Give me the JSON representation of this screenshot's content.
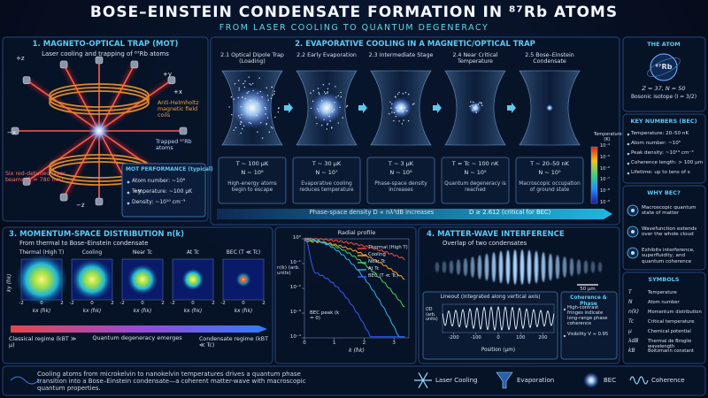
{
  "header": {
    "title": "BOSE–EINSTEIN CONDENSATE FORMATION IN ⁸⁷Rb ATOMS",
    "subtitle": "FROM LASER COOLING TO QUANTUM DEGENERACY"
  },
  "mot": {
    "title": "1. MAGNETO-OPTICAL TRAP (MOT)",
    "subtitle": "Laser cooling and trapping of ⁸⁷Rb atoms",
    "axes": [
      "+z",
      "−z",
      "+x",
      "−x",
      "+y",
      "−y"
    ],
    "coils_label": "Anti-Helmholtz magnetic field coils",
    "atoms_label": "Trapped ⁸⁷Rb atoms",
    "beams_label": "Six red-detuned laser beams (λ = 780 nm)",
    "performance": {
      "title": "MOT PERFORMANCE (typical)",
      "items": [
        "Atom number: ~10⁸",
        "Temperature: ~100 μK",
        "Density: ~10¹⁰ cm⁻³"
      ]
    }
  },
  "evap": {
    "title": "2. EVAPORATIVE COOLING IN A MAGNETIC/OPTICAL TRAP",
    "stages": [
      {
        "name": "2.1  Optical Dipole Trap (Loading)",
        "T": "T ~ 100 μK",
        "N": "N ~ 10⁸",
        "note": "High-energy atoms begin to escape"
      },
      {
        "name": "2.2  Early Evaporation",
        "T": "T ~ 30 μK",
        "N": "N ~ 10⁷",
        "note": "Evaporative cooling reduces temperature"
      },
      {
        "name": "2.3  Intermediate Stage",
        "T": "T ~ 3 μK",
        "N": "N ~ 10⁶",
        "note": "Phase-space density increases"
      },
      {
        "name": "2.4  Near Critical Temperature",
        "T": "T ≈ Tc ~ 100 nK",
        "N": "N ~ 10⁵",
        "note": "Quantum degeneracy is reached"
      },
      {
        "name": "2.5  Bose–Einstein Condensate",
        "T": "T ~ 20–50 nK",
        "N": "N ~ 10⁵",
        "note": "Macroscopic occupation of ground state"
      }
    ],
    "colorbar": {
      "title": "Temperature (K)",
      "ticks": [
        "10⁻⁴",
        "10⁻⁵",
        "10⁻⁶",
        "10⁻⁷",
        "10⁻⁸",
        "10⁻⁹"
      ]
    },
    "psd": "Phase-space density  D ∝ nλ³dB  increases",
    "critical": "D ≥ 2.612 (critical for BEC)"
  },
  "atom": {
    "title": "THE ATOM",
    "symbol": "⁸⁷Rb",
    "numbers": "Z = 37, N = 50",
    "isotope": "Bosonic isotope (I = 3/2)"
  },
  "key_numbers": {
    "title": "KEY NUMBERS (BEC)",
    "items": [
      "Temperature: 20–50 nK",
      "Atom number: ~10⁵",
      "Peak density: ~10¹⁴ cm⁻³",
      "Coherence length: > 100 μm",
      "Lifetime: up to tens of s"
    ]
  },
  "why": {
    "title": "WHY BEC?",
    "items": [
      "Macroscopic quantum state of matter",
      "Wavefunction extends over the whole cloud",
      "Exhibits interference, superfluidity, and quantum coherence"
    ]
  },
  "symbols": {
    "title": "SYMBOLS",
    "items": [
      [
        "T",
        "Temperature"
      ],
      [
        "N",
        "Atom number"
      ],
      [
        "n(k)",
        "Momentum distribution"
      ],
      [
        "Tc",
        "Critical temperature"
      ],
      [
        "μ",
        "Chemical potential"
      ],
      [
        "λdB",
        "Thermal de Broglie wavelength"
      ],
      [
        "kB",
        "Boltzmann constant"
      ]
    ]
  },
  "momentum": {
    "title": "3. MOMENTUM-SPACE DISTRIBUTION n(k)",
    "subtitle": "From thermal to Bose–Einstein condensate",
    "panels": [
      "Thermal (High T)",
      "Cooling",
      "Near Tc",
      "At Tc",
      "BEC (T ≪ Tc)"
    ],
    "ky_label": "ky (ħk)",
    "kx_label": "kx (ħk)",
    "ticks": [
      -2,
      0,
      2
    ],
    "classical": "Classical regime (kBT ≫ μ)",
    "degeneracy": "Quantum degeneracy emerges",
    "condensate": "Condensate regime (kBT ≪ Tc)"
  },
  "radial": {
    "title": "Radial profile",
    "ylabel": "n(k) (arb. units)",
    "xlabel": "k (ħk)",
    "xlim": [
      0,
      3.5
    ],
    "xticks": [
      0,
      1,
      2,
      3
    ],
    "ylim": [
      0.0001,
      1
    ],
    "yticks": [
      {
        "value": 1,
        "label": "10⁰"
      },
      {
        "value": 0.1,
        "label": "10⁻¹"
      },
      {
        "value": 0.01,
        "label": "10⁻²"
      },
      {
        "value": 0.001,
        "label": "10⁻³"
      },
      {
        "value": 0.0001,
        "label": "10⁻⁴"
      }
    ],
    "legend": [
      "Thermal (High T)",
      "Cooling",
      "Near Tc",
      "At Tc",
      "BEC (T ≪ Tc)"
    ],
    "peak_label": "BEC peak (k = 0)"
  },
  "interference": {
    "title": "4. MATTER-WAVE INTERFERENCE",
    "subtitle": "Overlap of two condensates",
    "scale": "50 μm",
    "lineout_title": "Lineout (integrated along vertical axis)",
    "ylabel": "OD (arb. units)",
    "xlim": [
      -250,
      250
    ],
    "xticks": [
      -200,
      -100,
      0,
      100,
      200
    ],
    "xlabel": "Position (μm)",
    "coherence_title": "Coherence & Phase",
    "coherence_items": [
      "High-contrast fringes indicate long-range phase coherence",
      "Visibility V ≈ 0.95"
    ]
  },
  "footer": {
    "text": "Cooling atoms from microkelvin to nanokelvin temperatures drives a quantum phase transition into a Bose–Einstein condensate—a coherent matter-wave with macroscopic quantum properties.",
    "legend": [
      "Laser Cooling",
      "Evaporation",
      "BEC",
      "Coherence"
    ]
  }
}
